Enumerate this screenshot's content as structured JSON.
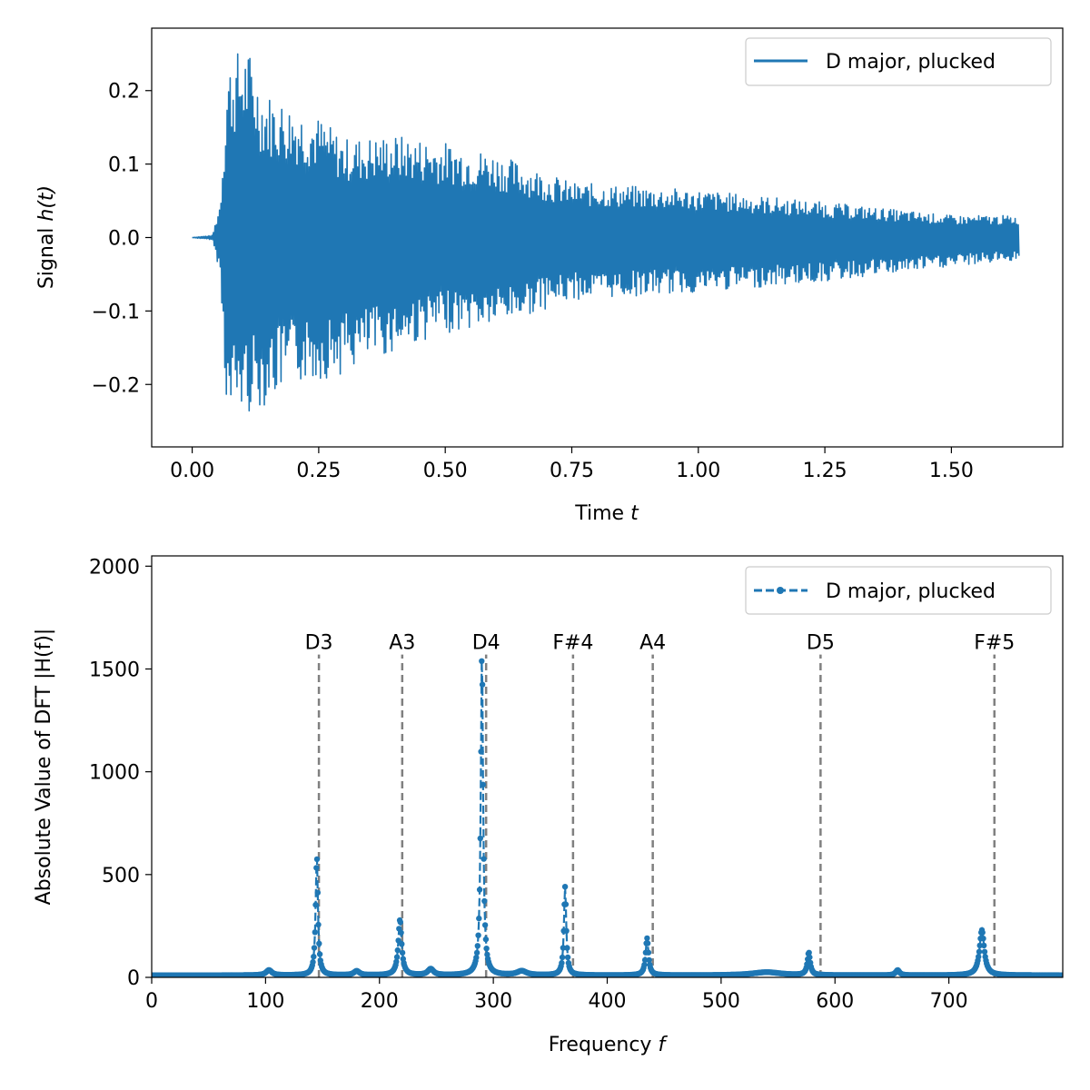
{
  "colors": {
    "series": "#1f77b4",
    "note_lines": "#808080",
    "axes": "#000000",
    "background": "#ffffff"
  },
  "chart_data": [
    {
      "type": "line",
      "ylabel_prefix": "Signal ",
      "ylabel_math": "h(t)",
      "xlabel_prefix": "Time ",
      "xlabel_math": "t",
      "xlim": [
        -0.08,
        1.72
      ],
      "ylim": [
        -0.285,
        0.285
      ],
      "xticks": [
        0.0,
        0.25,
        0.5,
        0.75,
        1.0,
        1.25,
        1.5
      ],
      "xtick_labels": [
        "0.00",
        "0.25",
        "0.50",
        "0.75",
        "1.00",
        "1.25",
        "1.50"
      ],
      "yticks": [
        -0.2,
        -0.1,
        0.0,
        0.1,
        0.2
      ],
      "ytick_labels": [
        "−0.2",
        "−0.1",
        "0.0",
        "0.1",
        "0.2"
      ],
      "legend": {
        "label": "D major, plucked",
        "position": "top-right"
      },
      "series": [
        {
          "name": "D major, plucked",
          "style": "solid",
          "envelope": {
            "t": [
              0.0,
              0.04,
              0.055,
              0.07,
              0.09,
              0.11,
              0.14,
              0.2,
              0.25,
              0.3,
              0.4,
              0.5,
              0.6,
              0.75,
              1.0,
              1.25,
              1.5,
              1.635
            ],
            "upper": [
              0.0,
              0.003,
              0.05,
              0.24,
              0.255,
              0.26,
              0.2,
              0.18,
              0.165,
              0.135,
              0.14,
              0.13,
              0.115,
              0.075,
              0.065,
              0.048,
              0.03,
              0.03
            ],
            "lower": [
              0.0,
              -0.003,
              -0.05,
              -0.26,
              -0.24,
              -0.24,
              -0.23,
              -0.2,
              -0.195,
              -0.185,
              -0.155,
              -0.13,
              -0.12,
              -0.085,
              -0.075,
              -0.06,
              -0.04,
              -0.03
            ]
          },
          "end_time": 1.635
        }
      ]
    },
    {
      "type": "line",
      "ylabel": "Absolute Value of DFT |H(f)|",
      "xlabel_prefix": "Frequency ",
      "xlabel_math": "f",
      "xlim": [
        0,
        800
      ],
      "ylim": [
        0,
        2050
      ],
      "xticks": [
        0,
        100,
        200,
        300,
        400,
        500,
        600,
        700
      ],
      "xtick_labels": [
        "0",
        "100",
        "200",
        "300",
        "400",
        "500",
        "600",
        "700"
      ],
      "yticks": [
        0,
        500,
        1000,
        1500,
        2000
      ],
      "ytick_labels": [
        "0",
        "500",
        "1000",
        "1500",
        "2000"
      ],
      "legend": {
        "label": "D major, plucked",
        "position": "top-right"
      },
      "series": [
        {
          "name": "D major, plucked",
          "style": "dashed-with-dots",
          "baseline": 10,
          "peaks": [
            {
              "f": 103,
              "value": 25,
              "width": 3
            },
            {
              "f": 145,
              "value": 580,
              "width": 1.2
            },
            {
              "f": 180,
              "value": 20,
              "width": 3
            },
            {
              "f": 218,
              "value": 270,
              "width": 1.8
            },
            {
              "f": 245,
              "value": 30,
              "width": 3
            },
            {
              "f": 290,
              "value": 1570,
              "width": 1.2
            },
            {
              "f": 325,
              "value": 20,
              "width": 5
            },
            {
              "f": 363,
              "value": 430,
              "width": 1.2
            },
            {
              "f": 435,
              "value": 180,
              "width": 1.5
            },
            {
              "f": 540,
              "value": 15,
              "width": 15
            },
            {
              "f": 577,
              "value": 110,
              "width": 1.5
            },
            {
              "f": 655,
              "value": 25,
              "width": 2
            },
            {
              "f": 729,
              "value": 220,
              "width": 2.5
            }
          ]
        }
      ],
      "annotations": [
        {
          "label": "D3",
          "f": 146.83,
          "line_top": 1570
        },
        {
          "label": "A3",
          "f": 220.0,
          "line_top": 1570
        },
        {
          "label": "D4",
          "f": 293.66,
          "line_top": 1570
        },
        {
          "label": "F#4",
          "f": 369.99,
          "line_top": 1570
        },
        {
          "label": "A4",
          "f": 440.0,
          "line_top": 1570
        },
        {
          "label": "D5",
          "f": 587.33,
          "line_top": 1570
        },
        {
          "label": "F#5",
          "f": 739.99,
          "line_top": 1570
        }
      ]
    }
  ]
}
